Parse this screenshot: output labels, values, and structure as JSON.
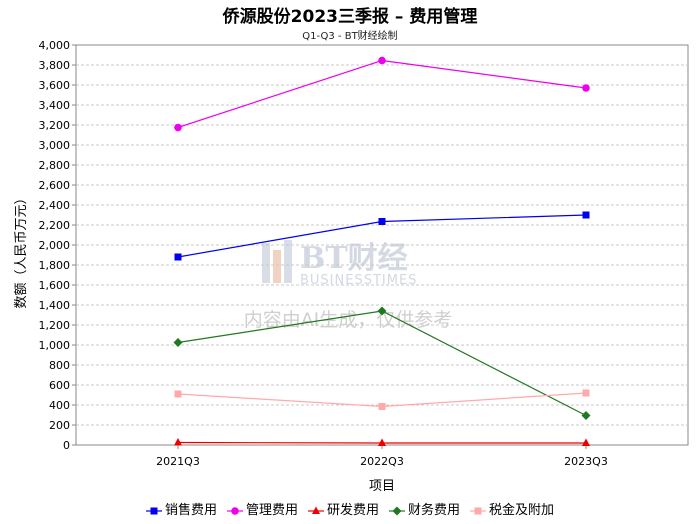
{
  "chart_data": {
    "type": "line",
    "title": "侨源股份2023三季报 – 费用管理",
    "subtitle": "Q1-Q3 - BT财经绘制",
    "xlabel": "项目",
    "ylabel": "数额（人民币万元）",
    "categories": [
      "2021Q3",
      "2022Q3",
      "2023Q3"
    ],
    "ylim": [
      0,
      4000
    ],
    "ytick_step": 200,
    "grid": true,
    "legend_position": "bottom",
    "series": [
      {
        "name": "销售费用",
        "values": [
          1880,
          2235,
          2300
        ],
        "color": "#0000ee",
        "marker": "square"
      },
      {
        "name": "管理费用",
        "values": [
          3175,
          3845,
          3570
        ],
        "color": "#ee00ee",
        "marker": "circle"
      },
      {
        "name": "研发费用",
        "values": [
          25,
          20,
          20
        ],
        "color": "#ee0000",
        "marker": "triangle"
      },
      {
        "name": "财务费用",
        "values": [
          1025,
          1340,
          295
        ],
        "color": "#227722",
        "marker": "diamond"
      },
      {
        "name": "税金及附加",
        "values": [
          510,
          385,
          520
        ],
        "color": "#ffaaaa",
        "marker": "square"
      }
    ]
  },
  "watermark": {
    "logo_text": "BT财经",
    "logo_subtext": "BUSINESSTIMES",
    "notice": "内容由AI生成，仅供参考"
  }
}
